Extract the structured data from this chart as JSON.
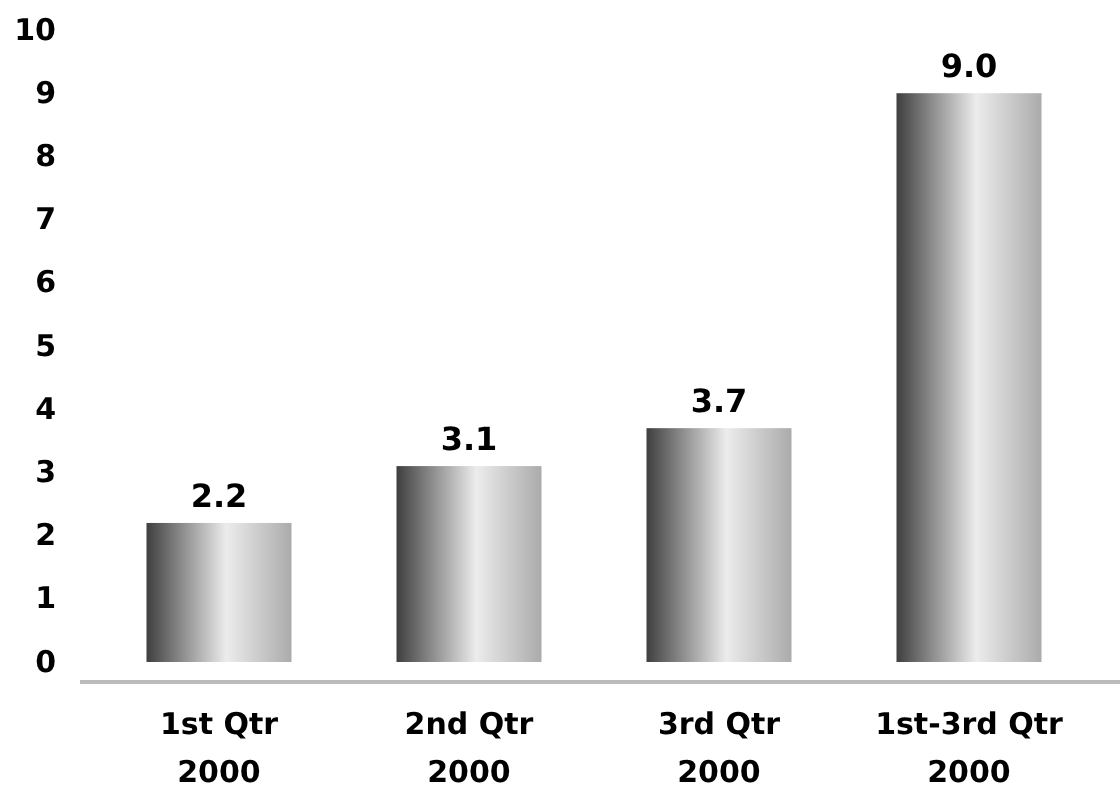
{
  "chart_data": {
    "type": "bar",
    "categories": [
      "1st Qtr\n2000",
      "2nd Qtr\n2000",
      "3rd Qtr\n2000",
      "1st-3rd Qtr\n2000"
    ],
    "values": [
      2.2,
      3.1,
      3.7,
      9.0
    ],
    "value_labels": [
      "2.2",
      "3.1",
      "3.7",
      "9.0"
    ],
    "color": "#9a9a9a",
    "ylim": [
      0,
      10
    ],
    "yticks": [
      0,
      1,
      2,
      3,
      4,
      5,
      6,
      7,
      8,
      9,
      10
    ],
    "grid": false
  }
}
